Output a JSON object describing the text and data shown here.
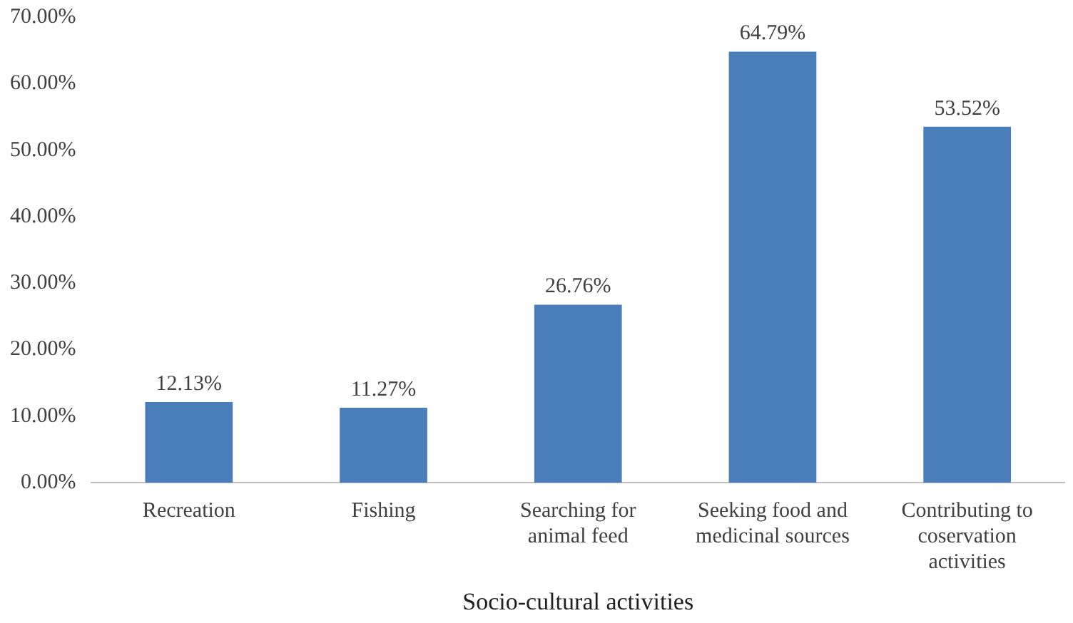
{
  "chart_data": {
    "type": "bar",
    "xlabel": "Socio-cultural activities",
    "categories": [
      "Recreation",
      "Fishing",
      "Searching for animal feed",
      "Seeking food and medicinal sources",
      "Contributing to coservation activities"
    ],
    "values": [
      12.13,
      11.27,
      26.76,
      64.79,
      53.52
    ],
    "color": "#4a7ebb",
    "value_labels": [
      "12.13%",
      "11.27%",
      "26.76%",
      "64.79%",
      "53.52%"
    ],
    "ylim": [
      0,
      70
    ],
    "yticks": [
      {
        "value": 0,
        "label": "0.00%"
      },
      {
        "value": 10,
        "label": "10.00%"
      },
      {
        "value": 20,
        "label": "20.00%"
      },
      {
        "value": 30,
        "label": "30.00%"
      },
      {
        "value": 40,
        "label": "40.00%"
      },
      {
        "value": 50,
        "label": "50.00%"
      },
      {
        "value": 60,
        "label": "60.00%"
      },
      {
        "value": 70,
        "label": "70.00%"
      }
    ],
    "grid": false,
    "legend": false
  }
}
